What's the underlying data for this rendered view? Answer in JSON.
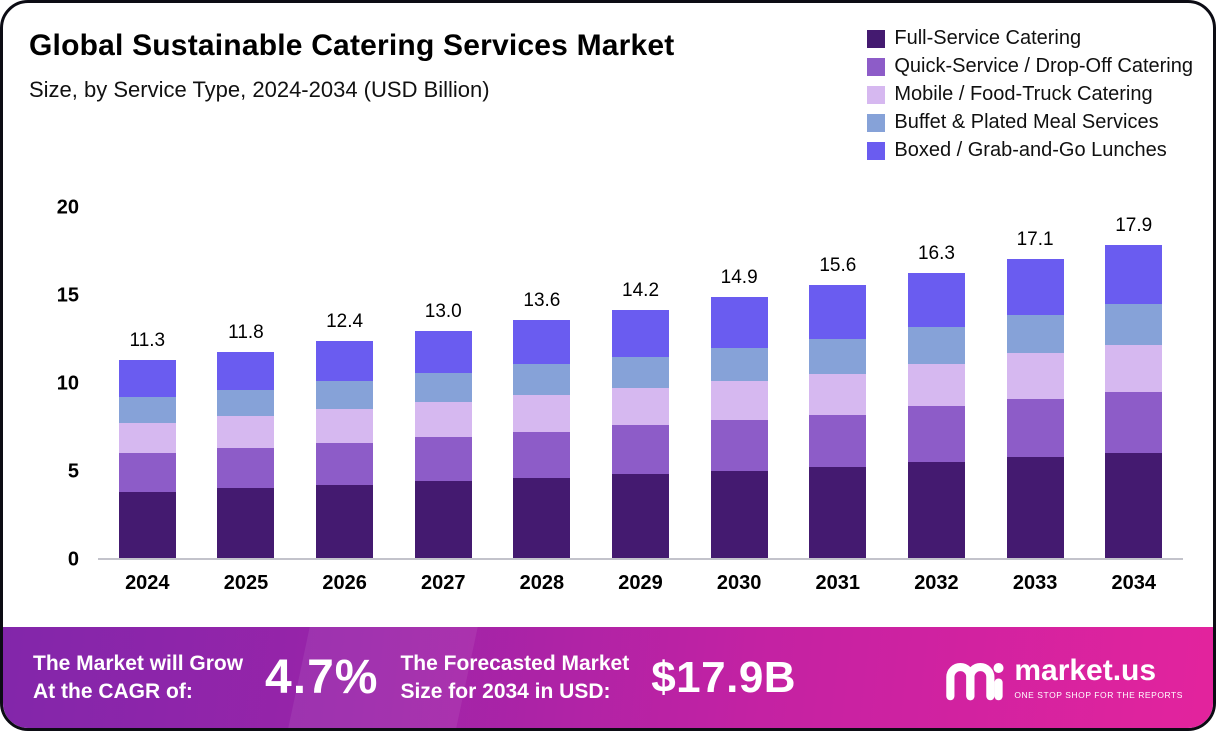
{
  "chart_data": {
    "type": "bar",
    "stacked": true,
    "title": "Global Sustainable Catering Services Market",
    "subtitle": "Size, by Service Type, 2024-2034 (USD Billion)",
    "categories": [
      "2024",
      "2025",
      "2026",
      "2027",
      "2028",
      "2029",
      "2030",
      "2031",
      "2032",
      "2033",
      "2034"
    ],
    "totals": [
      "11.3",
      "11.8",
      "12.4",
      "13.0",
      "13.6",
      "14.2",
      "14.9",
      "15.6",
      "16.3",
      "17.1",
      "17.9"
    ],
    "series": [
      {
        "name": "Full-Service Catering",
        "color": "#441a70",
        "values": [
          3.8,
          4.0,
          4.2,
          4.4,
          4.6,
          4.8,
          5.0,
          5.2,
          5.5,
          5.8,
          6.0
        ]
      },
      {
        "name": "Quick-Service / Drop-Off Catering",
        "color": "#8d5cc8",
        "values": [
          2.2,
          2.3,
          2.4,
          2.5,
          2.6,
          2.8,
          2.9,
          3.0,
          3.2,
          3.3,
          3.5
        ]
      },
      {
        "name": "Mobile / Food-Truck Catering",
        "color": "#d6b8f0",
        "values": [
          1.7,
          1.8,
          1.9,
          2.0,
          2.1,
          2.1,
          2.2,
          2.3,
          2.4,
          2.6,
          2.7
        ]
      },
      {
        "name": "Buffet & Plated Meal Services",
        "color": "#86a2d8",
        "values": [
          1.5,
          1.5,
          1.6,
          1.7,
          1.8,
          1.8,
          1.9,
          2.0,
          2.1,
          2.2,
          2.3
        ]
      },
      {
        "name": "Boxed / Grab-and-Go Lunches",
        "color": "#6a5cf0",
        "values": [
          2.1,
          2.2,
          2.3,
          2.4,
          2.5,
          2.7,
          2.9,
          3.1,
          3.1,
          3.2,
          3.4
        ]
      }
    ],
    "yticks": [
      0,
      5,
      10,
      15,
      20
    ],
    "ylim": [
      0,
      20
    ],
    "xlabel": "",
    "ylabel": "",
    "grid": false,
    "legend_position": "top-right"
  },
  "banner": {
    "growth_label_line1": "The Market will Grow",
    "growth_label_line2": "At the CAGR of:",
    "cagr_value": "4.7%",
    "forecast_label_line1": "The Forecasted Market",
    "forecast_label_line2": "Size for 2034 in USD:",
    "forecast_value": "$17.9B",
    "brand_name": "market.us",
    "brand_tagline": "ONE STOP SHOP FOR THE REPORTS"
  }
}
